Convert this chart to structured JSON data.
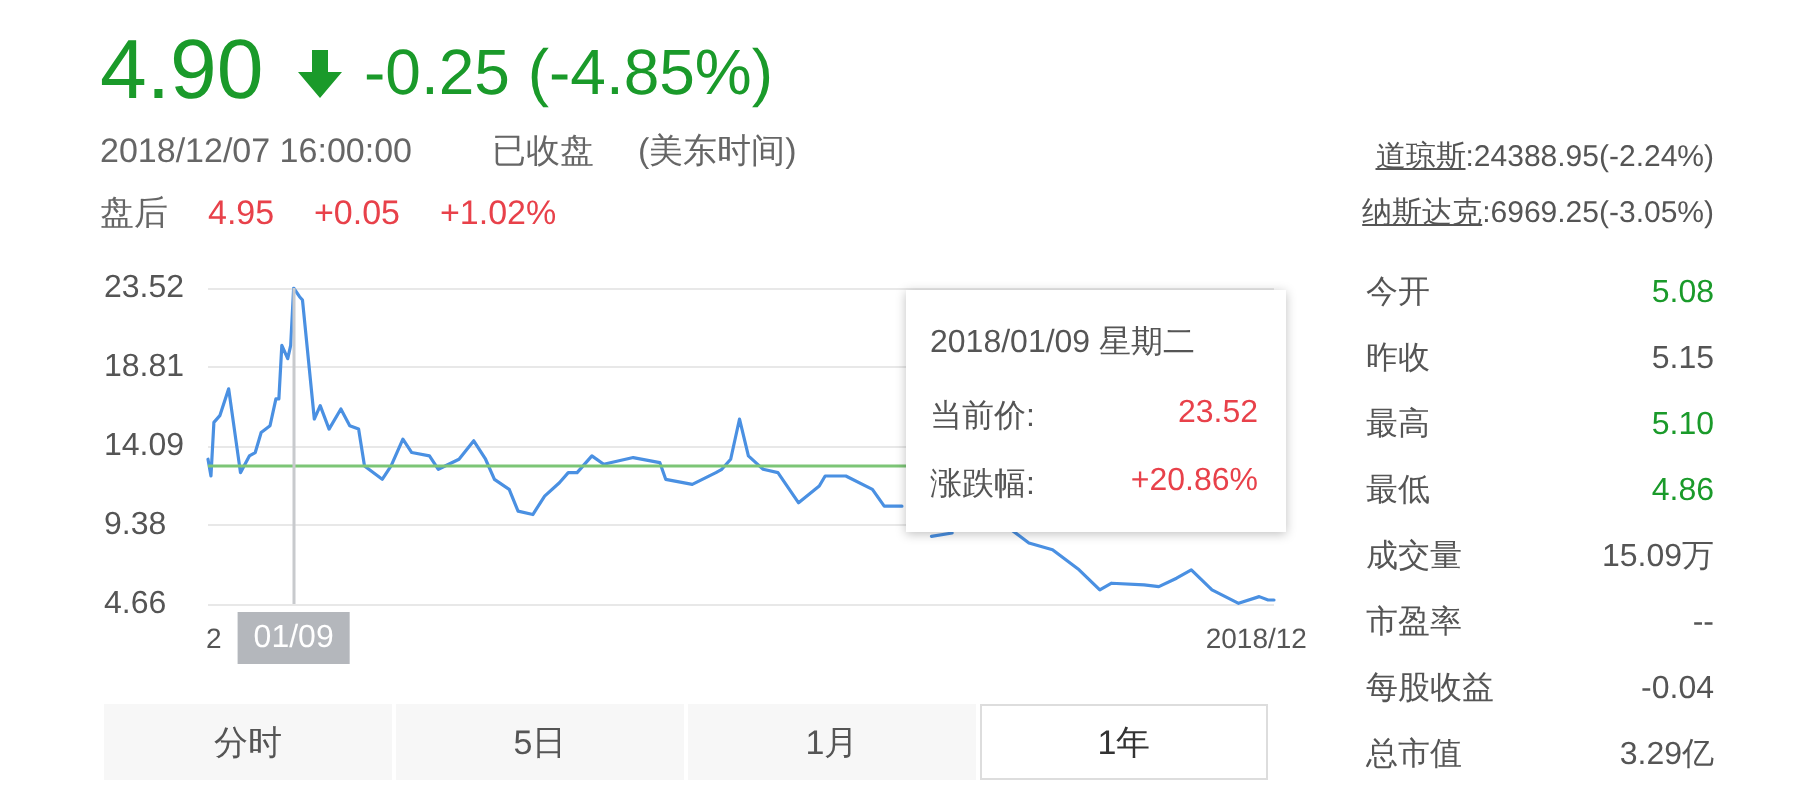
{
  "chart_data": {
    "type": "line",
    "color": "#4a90e2",
    "grid": "y",
    "marker": "none",
    "line_style": "solid",
    "xlim": [
      "2017-12-11",
      "2018-12-07"
    ],
    "xticks": [
      {
        "value": "2017-12-13",
        "label": "2"
      },
      {
        "value": "2018-12-01",
        "label": "2018/12"
      }
    ],
    "ylim": [
      4.66,
      23.52
    ],
    "yticks": [
      4.66,
      9.38,
      14.09,
      18.81,
      23.52
    ],
    "x": [
      "2017-12-11",
      "2017-12-12",
      "2017-12-13",
      "2017-12-15",
      "2017-12-18",
      "2017-12-22",
      "2017-12-25",
      "2017-12-27",
      "2017-12-29",
      "2018-01-01",
      "2018-01-03",
      "2018-01-04",
      "2018-01-05",
      "2018-01-07",
      "2018-01-08",
      "2018-01-09",
      "2018-01-11",
      "2018-01-12",
      "2018-01-16",
      "2018-01-18",
      "2018-01-21",
      "2018-01-25",
      "2018-01-28",
      "2018-01-31",
      "2018-02-02",
      "2018-02-08",
      "2018-02-11",
      "2018-02-15",
      "2018-02-18",
      "2018-02-24",
      "2018-02-27",
      "2018-03-06",
      "2018-03-11",
      "2018-03-15",
      "2018-03-18",
      "2018-03-23",
      "2018-03-26",
      "2018-03-31",
      "2018-04-04",
      "2018-04-09",
      "2018-04-12",
      "2018-04-15",
      "2018-04-20",
      "2018-04-24",
      "2018-05-04",
      "2018-05-13",
      "2018-05-15",
      "2018-05-24",
      "2018-06-01",
      "2018-06-03",
      "2018-06-06",
      "2018-06-09",
      "2018-06-12",
      "2018-06-17",
      "2018-06-22",
      "2018-06-29",
      "2018-07-06",
      "2018-07-08",
      "2018-07-15",
      "2018-07-24",
      "2018-07-28",
      "2018-08-03",
      "2018-08-08",
      "2018-08-13",
      "2018-08-20",
      "2018-08-27",
      "2018-09-09",
      "2018-09-15",
      "2018-09-23",
      "2018-10-02",
      "2018-10-09",
      "2018-10-13",
      "2018-10-24",
      "2018-10-29",
      "2018-11-04",
      "2018-11-09",
      "2018-11-16",
      "2018-11-25",
      "2018-12-02",
      "2018-12-05",
      "2018-12-07"
    ],
    "values": [
      13.3,
      12.3,
      15.5,
      15.9,
      17.5,
      12.5,
      13.5,
      13.7,
      14.9,
      15.3,
      16.9,
      16.9,
      20.1,
      19.3,
      20.1,
      23.52,
      23,
      22.8,
      15.7,
      16.5,
      15.1,
      16.3,
      15.3,
      15.1,
      12.9,
      12.1,
      12.9,
      14.5,
      13.7,
      13.5,
      12.7,
      13.3,
      14.4,
      13.3,
      12.1,
      11.5,
      10.2,
      10,
      11.1,
      11.9,
      12.5,
      12.5,
      13.5,
      13,
      13.4,
      13.1,
      12.1,
      11.8,
      12.5,
      12.7,
      13.3,
      15.7,
      13.5,
      12.7,
      12.5,
      10.7,
      11.7,
      12.3,
      12.3,
      11.5,
      10.5,
      10.5,
      null,
      8.7,
      8.9,
      null,
      9.1,
      8.3,
      7.9,
      6.7,
      5.5,
      5.9,
      5.8,
      5.7,
      6.2,
      6.7,
      5.5,
      4.7,
      5.1,
      4.9,
      4.9
    ],
    "ref_lines": [
      {
        "axis": "y",
        "value": 12.89,
        "color": "#7cc576"
      },
      {
        "axis": "x",
        "value": "2018-01-09",
        "label": "01/09",
        "color": "#c8cacd"
      }
    ],
    "annotations": [
      "4.90",
      "-0.25 (-4.85%)",
      "2018/12/07 16:00:00",
      "已收盘",
      "(美东时间)",
      "盘后",
      "4.95",
      "+0.05",
      "+1.02%",
      "道琼斯:24388.95(-2.24%)",
      "纳斯达克:6969.25(-3.05%)",
      "今开",
      "5.08",
      "昨收",
      "5.15",
      "最高",
      "5.10",
      "最低",
      "4.86",
      "成交量",
      "15.09万",
      "市盈率",
      "--",
      "每股收益",
      "-0.04",
      "总市值",
      "3.29亿",
      "分时",
      "5日",
      "1月",
      "1年",
      "2018/01/09 星期二",
      "当前价:",
      "23.52",
      "涨跌幅:",
      "+20.86%"
    ]
  }
}
